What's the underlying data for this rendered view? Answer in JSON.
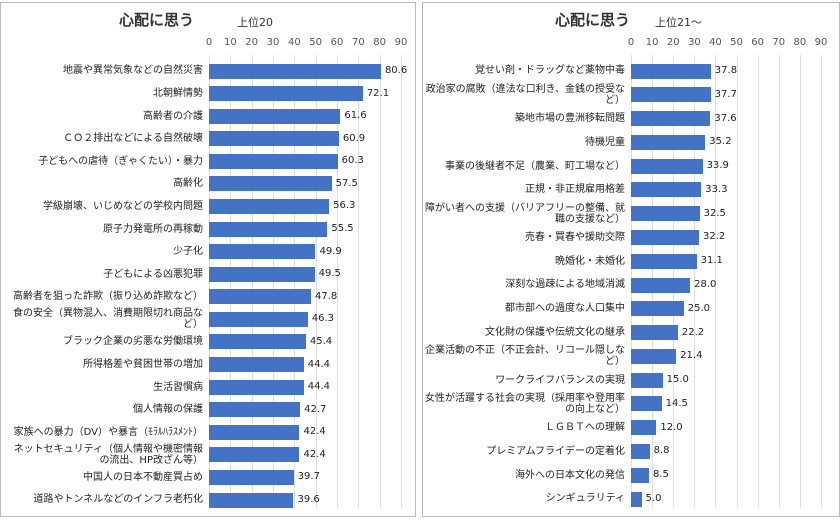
{
  "chart_data": [
    {
      "type": "bar",
      "title": "心配に思う",
      "subtitle": "上位20",
      "categories": [
        "地震や異常気象などの自然災害",
        "北朝鮮情勢",
        "高齢者の介護",
        "ＣＯ２排出などによる自然破壊",
        "子どもへの虐待（ぎゃくたい）・暴力",
        "高齢化",
        "学級崩壊、いじめなどの学校内問題",
        "原子力発電所の再稼動",
        "少子化",
        "子どもによる凶悪犯罪",
        "高齢者を狙った詐欺（振り込め詐欺など）",
        "食の安全（異物混入、消費期限切れ商品など）",
        "ブラック企業の劣悪な労働環境",
        "所得格差や貧困世帯の増加",
        "生活習慣病",
        "個人情報の保護",
        "家族への暴力（DV）や暴言（ﾓﾗﾙﾊﾗｽﾒﾝﾄ）",
        "ネットセキュリティ（個人情報や機密情報の流出、HP改ざん等）",
        "中国人の日本不動産買占め",
        "道路やトンネルなどのインフラ老朽化"
      ],
      "values": [
        80.6,
        72.1,
        61.6,
        60.9,
        60.3,
        57.5,
        56.3,
        55.5,
        49.9,
        49.5,
        47.8,
        46.3,
        45.4,
        44.4,
        44.4,
        42.7,
        42.4,
        42.4,
        39.7,
        39.6
      ],
      "value_labels": [
        "80.6",
        "72.1",
        "61.6",
        "60.9",
        "60.3",
        "57.5",
        "56.3",
        "55.5",
        "49.9",
        "49.5",
        "47.8",
        "46.3",
        "45.4",
        "44.4",
        "44.4",
        "42.7",
        "42.4",
        "42.4",
        "39.7",
        "39.6"
      ],
      "color": "#4472c4",
      "xlim": [
        0,
        90
      ],
      "xticks": [
        0,
        10,
        20,
        30,
        40,
        50,
        60,
        70,
        80,
        90
      ],
      "grid": true
    },
    {
      "type": "bar",
      "title": "心配に思う",
      "subtitle": "上位21～",
      "categories": [
        "覚せい剤・ドラッグなど薬物中毒",
        "政治家の腐敗（違法な口利き、金銭の授受など）",
        "築地市場の豊洲移転問題",
        "待機児童",
        "事業の後継者不足（農業、町工場など）",
        "正規・非正規雇用格差",
        "障がい者への支援（バリアフリーの整備、就職の支援など）",
        "売春・買春や援助交際",
        "晩婚化・未婚化",
        "深刻な過疎による地域消滅",
        "都市部への過度な人口集中",
        "文化財の保護や伝統文化の継承",
        "企業活動の不正（不正会計、リコール隠しなど）",
        "ワークライフバランスの実現",
        "女性が活躍する社会の実現（採用率や登用率の向上など）",
        "ＬＧＢＴへの理解",
        "プレミアムフライデーの定着化",
        "海外への日本文化の発信",
        "シンギュラリティ"
      ],
      "values": [
        37.8,
        37.7,
        37.6,
        35.2,
        33.9,
        33.3,
        32.5,
        32.2,
        31.1,
        28.0,
        25.0,
        22.2,
        21.4,
        15.0,
        14.5,
        12.0,
        8.8,
        8.5,
        5.0
      ],
      "value_labels": [
        "37.8",
        "37.7",
        "37.6",
        "35.2",
        "33.9",
        "33.3",
        "32.5",
        "32.2",
        "31.1",
        "28.0",
        "25.0",
        "22.2",
        "21.4",
        "15.0",
        "14.5",
        "12.0",
        "8.8",
        "8.5",
        "5.0"
      ],
      "color": "#4472c4",
      "xlim": [
        0,
        90
      ],
      "xticks": [
        0,
        10,
        20,
        30,
        40,
        50,
        60,
        70,
        80,
        90
      ],
      "grid": true
    }
  ]
}
